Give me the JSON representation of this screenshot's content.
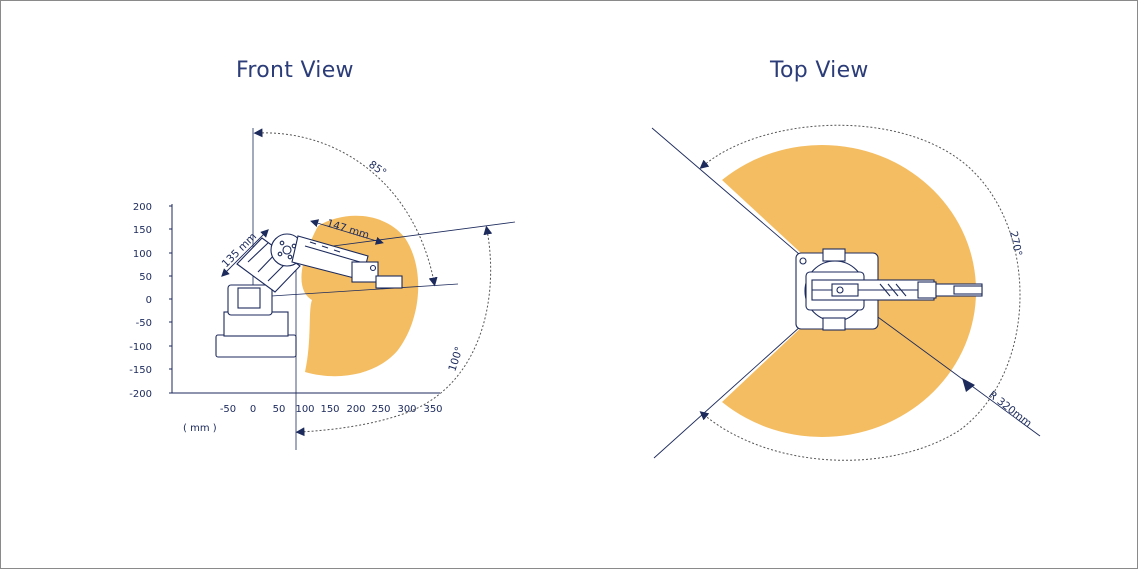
{
  "front_view": {
    "title": "Front View",
    "y_ticks": [
      "200",
      "150",
      "100",
      "50",
      "0",
      "-50",
      "-100",
      "-150",
      "-200"
    ],
    "x_ticks": [
      "-50",
      "0",
      "50",
      "100",
      "150",
      "200",
      "250",
      "300",
      "350"
    ],
    "unit_label": "( mm )",
    "dimension_rear_arm": "135 mm",
    "dimension_fore_arm": "147 mm",
    "angle_upper": "85°",
    "angle_lower": "100°"
  },
  "top_view": {
    "title": "Top View",
    "angle_label": "270°",
    "radius_label": "R 320mm"
  },
  "colors": {
    "workspace_fill": "#f4bd62",
    "line": "#1c2a5c",
    "title": "#2b3c78"
  }
}
